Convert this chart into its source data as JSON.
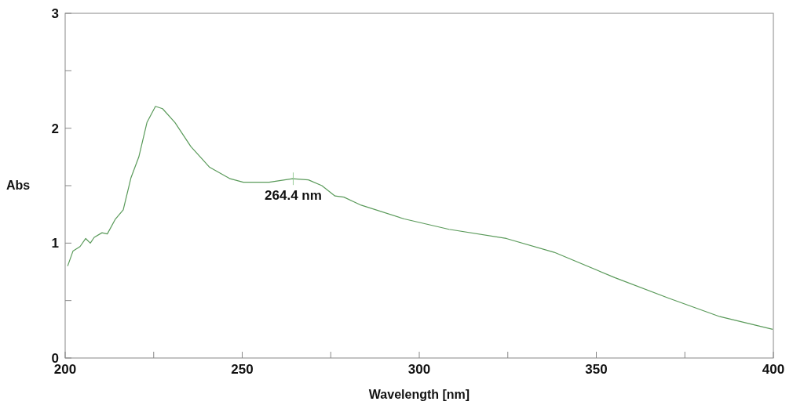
{
  "chart_data": {
    "type": "line",
    "xlabel": "Wavelength [nm]",
    "ylabel": "Abs",
    "xlim": [
      200,
      400
    ],
    "xticks": [
      200,
      {
        "value": 225,
        "label": null
      },
      250,
      {
        "value": 275,
        "label": null
      },
      300,
      {
        "value": 325,
        "label": null
      },
      350,
      {
        "value": 375,
        "label": null
      },
      400
    ],
    "ylim": [
      0,
      3
    ],
    "yticks": [
      0,
      {
        "value": 0.5,
        "label": null
      },
      1,
      {
        "value": 1.5,
        "label": null
      },
      2,
      {
        "value": 2.5,
        "label": null
      },
      3
    ],
    "grid": false,
    "marker": "none",
    "line_style": "solid",
    "annotations": [
      {
        "text": "264.4 nm",
        "x": 264.4,
        "y": 1.56
      }
    ],
    "series": [
      {
        "color": "#5a9a5a",
        "x": [
          200.7,
          202.2,
          204.2,
          205.8,
          207.1,
          208.2,
          210.4,
          211.9,
          214.2,
          216.4,
          218.6,
          220.8,
          223.1,
          225.5,
          227.5,
          231.0,
          235.5,
          240.8,
          246.6,
          250.3,
          257.6,
          264.2,
          268.7,
          272.5,
          276.2,
          278.7,
          283.6,
          295.8,
          308.4,
          324.6,
          338.1,
          355.2,
          370.5,
          384.9,
          399.8
        ],
        "values": [
          0.8,
          0.93,
          0.97,
          1.04,
          1.0,
          1.05,
          1.09,
          1.08,
          1.21,
          1.29,
          1.57,
          1.75,
          2.05,
          2.19,
          2.17,
          2.05,
          1.84,
          1.66,
          1.56,
          1.53,
          1.53,
          1.56,
          1.55,
          1.5,
          1.41,
          1.4,
          1.33,
          1.21,
          1.12,
          1.04,
          0.92,
          0.7,
          0.52,
          0.36,
          0.25
        ]
      }
    ]
  }
}
